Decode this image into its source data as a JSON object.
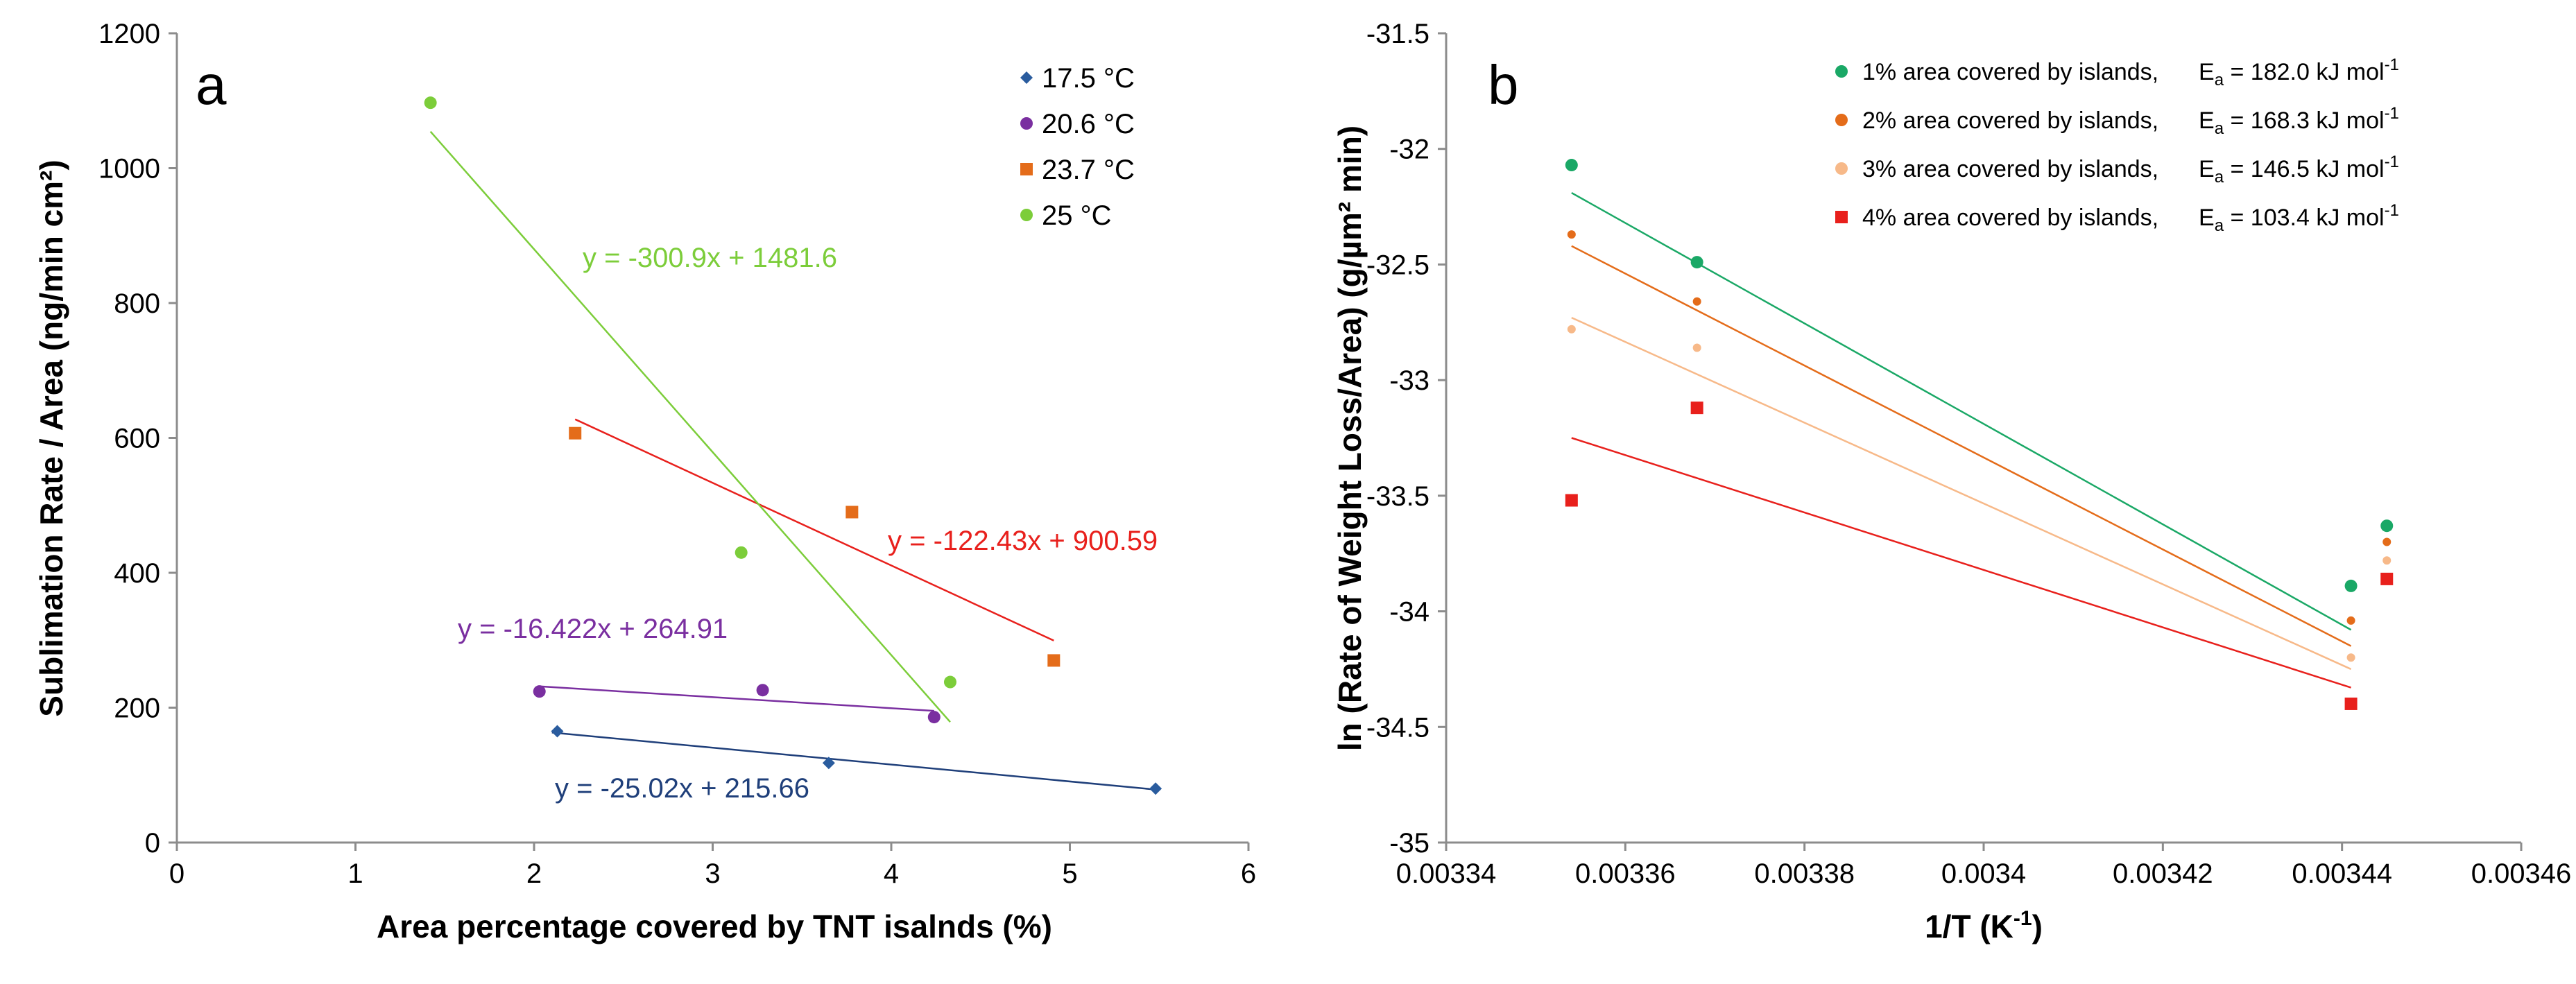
{
  "chart_data": [
    {
      "type": "scatter",
      "panel_label": "a",
      "xlabel": "Area percentage covered by TNT isalnds (%)",
      "ylabel": "Sublimation Rate / Area (ng/min cm²)",
      "xlim": [
        0,
        6
      ],
      "ylim": [
        0,
        1200
      ],
      "xticks": [
        "0",
        "1",
        "2",
        "3",
        "4",
        "5",
        "6"
      ],
      "yticks": [
        "0",
        "200",
        "400",
        "600",
        "800",
        "1000",
        "1200"
      ],
      "legend_position": "top-right",
      "series": [
        {
          "name": "17.5 °C",
          "color": "#2a5c9e",
          "marker": "diamond",
          "x": [
            2.13,
            3.65,
            5.48
          ],
          "y": [
            165,
            118,
            80
          ],
          "fit": {
            "x": [
              2.1,
              5.48
            ],
            "equation": "y = -25.02x + 215.66",
            "slope": -25.02,
            "intercept": 215.66,
            "color": "#1f3f7a"
          }
        },
        {
          "name": "20.6 °C",
          "color": "#7a2fa0",
          "marker": "circle",
          "x": [
            2.03,
            3.28,
            4.24
          ],
          "y": [
            224,
            226,
            186
          ],
          "fit": {
            "x": [
              2.03,
              4.24
            ],
            "equation": "y = -16.422x + 264.91",
            "slope": -16.422,
            "intercept": 264.91,
            "color": "#7a2fa0"
          }
        },
        {
          "name": "23.7 °C",
          "color": "#e46c1a",
          "marker": "square",
          "x": [
            2.23,
            3.78,
            4.91
          ],
          "y": [
            607,
            490,
            270
          ],
          "fit": {
            "x": [
              2.23,
              4.91
            ],
            "equation": "y = -122.43x + 900.59",
            "slope": -122.43,
            "intercept": 900.59,
            "color": "#e8201c"
          }
        },
        {
          "name": "25 °C",
          "color": "#7ccd3a",
          "marker": "circle",
          "x": [
            1.42,
            3.16,
            4.33
          ],
          "y": [
            1097,
            430,
            238
          ],
          "fit": {
            "x": [
              1.42,
              4.33
            ],
            "equation": "y = -300.9x + 1481.6",
            "slope": -300.9,
            "intercept": 1481.6,
            "color": "#7ccd3a"
          }
        }
      ]
    },
    {
      "type": "scatter",
      "panel_label": "b",
      "xlabel": "1/T (K-1)",
      "xlabel_main": "1/T (K",
      "xlabel_sup": "-1",
      "xlabel_end": ")",
      "ylabel": "ln (Rate of Weight Loss/Area) (g/µm² min)",
      "xlim": [
        0.00334,
        0.00346
      ],
      "ylim": [
        -35,
        -31.5
      ],
      "xticks": [
        "0.00334",
        "0.00336",
        "0.00338",
        "0.0034",
        "0.00342",
        "0.00344",
        "0.00346"
      ],
      "yticks": [
        "-35",
        "-34.5",
        "-34",
        "-33.5",
        "-33",
        "-32.5",
        "-32",
        "-31.5"
      ],
      "legend_position": "top-right",
      "series": [
        {
          "name": "1% area covered by islands,",
          "ea_label": "E",
          "ea_sub": "a",
          "ea_value": " = 182.0 kJ mol",
          "ea_sup": "-1",
          "color": "#1aa866",
          "marker": "circle",
          "x": [
            0.003354,
            0.003368,
            0.003445,
            0.003441
          ],
          "y": [
            -32.07,
            -32.49,
            -33.63,
            -33.89
          ],
          "fit": {
            "x": [
              0.003354,
              0.003441
            ],
            "y": [
              -32.19,
              -34.08
            ]
          }
        },
        {
          "name": "2% area covered by islands,",
          "ea_label": "E",
          "ea_sub": "a",
          "ea_value": " = 168.3 kJ mol",
          "ea_sup": "-1",
          "color": "#e46c1a",
          "marker": "circle-small",
          "x": [
            0.003354,
            0.003368,
            0.003445,
            0.003441
          ],
          "y": [
            -32.37,
            -32.66,
            -33.7,
            -34.04
          ],
          "fit": {
            "x": [
              0.003354,
              0.003441
            ],
            "y": [
              -32.42,
              -34.15
            ]
          }
        },
        {
          "name": "3% area covered by islands,",
          "ea_label": "E",
          "ea_sub": "a",
          "ea_value": " = 146.5 kJ mol",
          "ea_sup": "-1",
          "color": "#f7b989",
          "marker": "circle-small",
          "x": [
            0.003354,
            0.003368,
            0.003445,
            0.003441
          ],
          "y": [
            -32.78,
            -32.86,
            -33.78,
            -34.2
          ],
          "fit": {
            "x": [
              0.003354,
              0.003441
            ],
            "y": [
              -32.73,
              -34.25
            ]
          }
        },
        {
          "name": "4% area covered by islands,",
          "ea_label": "E",
          "ea_sub": "a",
          "ea_value": " = 103.4 kJ mol",
          "ea_sup": "-1",
          "color": "#e8201c",
          "marker": "square",
          "x": [
            0.003354,
            0.003368,
            0.003445,
            0.003441
          ],
          "y": [
            -33.52,
            -33.12,
            -33.86,
            -34.4
          ],
          "fit": {
            "x": [
              0.003354,
              0.003441
            ],
            "y": [
              -33.25,
              -34.33
            ]
          }
        }
      ]
    }
  ]
}
